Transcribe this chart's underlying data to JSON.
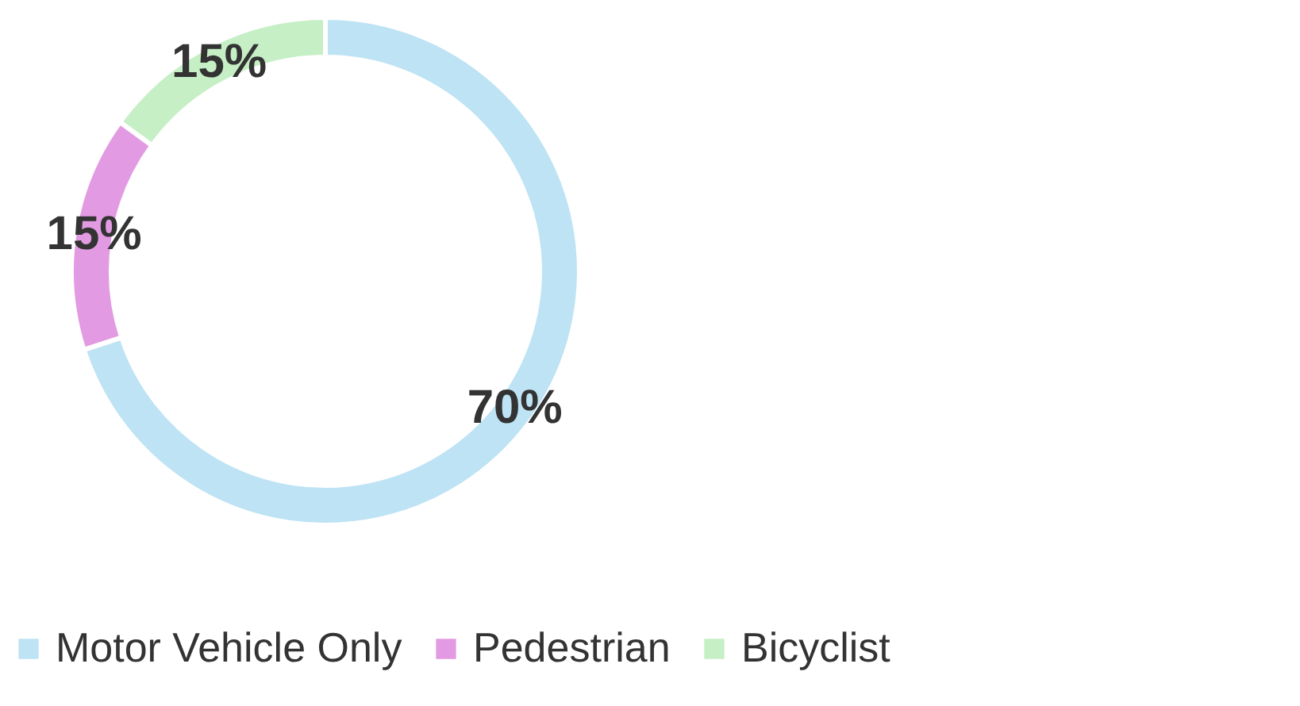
{
  "chart_data": {
    "type": "donut",
    "categories": [
      "Motor Vehicle Only",
      "Pedestrian",
      "Bicyclist"
    ],
    "values": [
      70,
      15,
      15
    ],
    "colors": [
      "#bde3f4",
      "#e29be2",
      "#c6efc6"
    ],
    "value_labels": [
      "70%",
      "15%",
      "15%"
    ],
    "legend": "bottom"
  }
}
